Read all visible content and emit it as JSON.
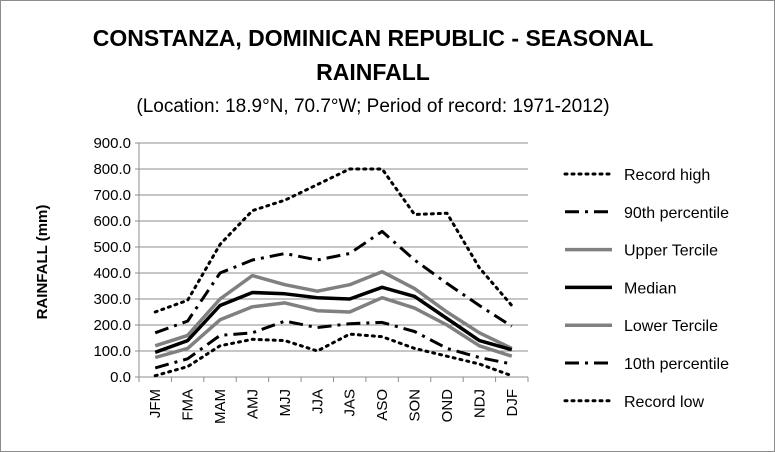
{
  "chart_data": {
    "type": "line",
    "title": "CONSTANZA, DOMINICAN REPUBLIC - SEASONAL RAINFALL",
    "title_line1": "CONSTANZA, DOMINICAN REPUBLIC - SEASONAL",
    "title_line2": "RAINFALL",
    "subtitle": "(Location: 18.9°N, 70.7°W; Period of record: 1971-2012)",
    "ylabel": "RAINFALL (mm)",
    "xlabel": "",
    "ylim": [
      0,
      900
    ],
    "yticks": [
      "0.0",
      "100.0",
      "200.0",
      "300.0",
      "400.0",
      "500.0",
      "600.0",
      "700.0",
      "800.0",
      "900.0"
    ],
    "categories": [
      "JFM",
      "FMA",
      "MAM",
      "AMJ",
      "MJJ",
      "JJA",
      "JAS",
      "ASO",
      "SON",
      "OND",
      "NDJ",
      "DJF"
    ],
    "grid": true,
    "legend_position": "right",
    "series": [
      {
        "name": "Record high",
        "color": "#000000",
        "style": "dotted",
        "values": [
          250,
          295,
          510,
          640,
          680,
          740,
          800,
          800,
          625,
          630,
          420,
          275
        ]
      },
      {
        "name": "90th percentile",
        "color": "#000000",
        "style": "dashdot",
        "values": [
          170,
          215,
          400,
          450,
          475,
          450,
          475,
          560,
          450,
          360,
          275,
          195
        ]
      },
      {
        "name": "Upper Tercile",
        "color": "#808080",
        "style": "solid",
        "values": [
          120,
          160,
          300,
          390,
          355,
          330,
          355,
          405,
          340,
          250,
          170,
          110
        ]
      },
      {
        "name": "Median",
        "color": "#000000",
        "style": "solid",
        "values": [
          95,
          140,
          275,
          325,
          320,
          305,
          300,
          345,
          310,
          225,
          140,
          105
        ]
      },
      {
        "name": "Lower Tercile",
        "color": "#808080",
        "style": "solid",
        "values": [
          75,
          110,
          220,
          270,
          285,
          255,
          250,
          305,
          265,
          200,
          120,
          80
        ]
      },
      {
        "name": "10th percentile",
        "color": "#000000",
        "style": "dashdot",
        "values": [
          35,
          70,
          160,
          170,
          215,
          190,
          205,
          210,
          175,
          110,
          75,
          50
        ]
      },
      {
        "name": "Record low",
        "color": "#000000",
        "style": "dotted",
        "values": [
          5,
          40,
          120,
          145,
          140,
          100,
          165,
          155,
          110,
          80,
          50,
          5
        ]
      }
    ]
  }
}
